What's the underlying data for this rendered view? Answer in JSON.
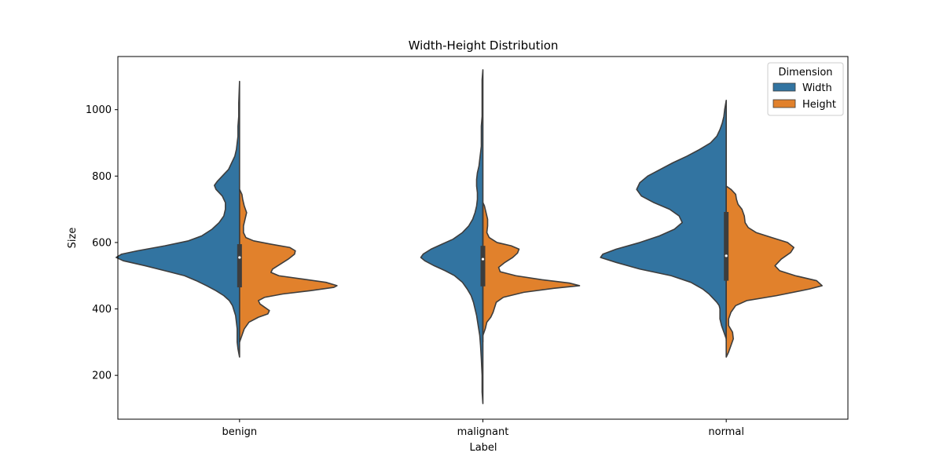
{
  "chart_data": {
    "type": "violin",
    "title": "Width-Height Distribution",
    "xlabel": "Label",
    "ylabel": "Size",
    "categories": [
      "benign",
      "malignant",
      "normal"
    ],
    "yticks": [
      200,
      400,
      600,
      800,
      1000
    ],
    "ylim": [
      68,
      1160
    ],
    "split": true,
    "grid": false,
    "legend": {
      "title": "Dimension",
      "placement": "top-right",
      "entries": [
        "Width",
        "Height"
      ]
    },
    "series": [
      {
        "name": "Width",
        "color": "#3274a1",
        "side": "left",
        "violins": [
          {
            "category": "benign",
            "profile": [
              [
                255,
                0
              ],
              [
                280,
                2
              ],
              [
                300,
                3
              ],
              [
                320,
                3
              ],
              [
                340,
                3
              ],
              [
                360,
                4
              ],
              [
                380,
                5
              ],
              [
                395,
                7
              ],
              [
                410,
                9
              ],
              [
                425,
                13
              ],
              [
                440,
                20
              ],
              [
                455,
                30
              ],
              [
                470,
                42
              ],
              [
                485,
                55
              ],
              [
                500,
                70
              ],
              [
                515,
                95
              ],
              [
                530,
                120
              ],
              [
                545,
                148
              ],
              [
                555,
                157
              ],
              [
                565,
                150
              ],
              [
                575,
                130
              ],
              [
                590,
                95
              ],
              [
                605,
                65
              ],
              [
                620,
                48
              ],
              [
                640,
                35
              ],
              [
                660,
                26
              ],
              [
                680,
                20
              ],
              [
                700,
                18
              ],
              [
                720,
                18
              ],
              [
                740,
                22
              ],
              [
                760,
                30
              ],
              [
                772,
                32
              ],
              [
                785,
                28
              ],
              [
                800,
                22
              ],
              [
                820,
                14
              ],
              [
                840,
                10
              ],
              [
                860,
                6
              ],
              [
                880,
                4
              ],
              [
                900,
                3
              ],
              [
                920,
                2
              ],
              [
                950,
                2
              ],
              [
                980,
                1
              ],
              [
                1020,
                1
              ],
              [
                1085,
                0
              ]
            ]
          },
          {
            "category": "malignant",
            "profile": [
              [
                115,
                0
              ],
              [
                150,
                1
              ],
              [
                200,
                1
              ],
              [
                250,
                2
              ],
              [
                290,
                3
              ],
              [
                320,
                4
              ],
              [
                350,
                6
              ],
              [
                380,
                8
              ],
              [
                400,
                10
              ],
              [
                420,
                12
              ],
              [
                440,
                15
              ],
              [
                460,
                20
              ],
              [
                480,
                26
              ],
              [
                500,
                36
              ],
              [
                515,
                48
              ],
              [
                530,
                62
              ],
              [
                545,
                74
              ],
              [
                555,
                79
              ],
              [
                565,
                76
              ],
              [
                580,
                66
              ],
              [
                595,
                52
              ],
              [
                610,
                38
              ],
              [
                630,
                26
              ],
              [
                650,
                18
              ],
              [
                670,
                13
              ],
              [
                690,
                10
              ],
              [
                710,
                8
              ],
              [
                730,
                7
              ],
              [
                750,
                7
              ],
              [
                770,
                8
              ],
              [
                790,
                8
              ],
              [
                810,
                7
              ],
              [
                830,
                5
              ],
              [
                850,
                4
              ],
              [
                870,
                3
              ],
              [
                890,
                2
              ],
              [
                920,
                2
              ],
              [
                950,
                2
              ],
              [
                980,
                1
              ],
              [
                1020,
                1
              ],
              [
                1060,
                1
              ],
              [
                1090,
                1
              ],
              [
                1120,
                0
              ]
            ]
          },
          {
            "category": "normal",
            "profile": [
              [
                310,
                0
              ],
              [
                330,
                3
              ],
              [
                350,
                6
              ],
              [
                370,
                8
              ],
              [
                390,
                8
              ],
              [
                400,
                8
              ],
              [
                410,
                9
              ],
              [
                420,
                12
              ],
              [
                430,
                16
              ],
              [
                445,
                22
              ],
              [
                460,
                30
              ],
              [
                480,
                45
              ],
              [
                500,
                70
              ],
              [
                520,
                110
              ],
              [
                540,
                140
              ],
              [
                555,
                160
              ],
              [
                565,
                157
              ],
              [
                580,
                140
              ],
              [
                600,
                110
              ],
              [
                620,
                85
              ],
              [
                640,
                66
              ],
              [
                660,
                56
              ],
              [
                680,
                60
              ],
              [
                700,
                72
              ],
              [
                720,
                92
              ],
              [
                740,
                108
              ],
              [
                760,
                114
              ],
              [
                780,
                110
              ],
              [
                800,
                100
              ],
              [
                820,
                84
              ],
              [
                840,
                68
              ],
              [
                860,
                50
              ],
              [
                880,
                34
              ],
              [
                900,
                20
              ],
              [
                920,
                12
              ],
              [
                940,
                8
              ],
              [
                960,
                5
              ],
              [
                980,
                3
              ],
              [
                1000,
                2
              ],
              [
                1028,
                0
              ]
            ]
          }
        ]
      },
      {
        "name": "Height",
        "color": "#e1812c",
        "side": "right",
        "violins": [
          {
            "category": "benign",
            "profile": [
              [
                300,
                0
              ],
              [
                320,
                3
              ],
              [
                340,
                6
              ],
              [
                360,
                12
              ],
              [
                375,
                24
              ],
              [
                385,
                36
              ],
              [
                395,
                38
              ],
              [
                405,
                32
              ],
              [
                415,
                26
              ],
              [
                425,
                24
              ],
              [
                435,
                32
              ],
              [
                445,
                55
              ],
              [
                455,
                90
              ],
              [
                465,
                120
              ],
              [
                470,
                124
              ],
              [
                480,
                110
              ],
              [
                490,
                80
              ],
              [
                500,
                50
              ],
              [
                510,
                40
              ],
              [
                520,
                42
              ],
              [
                535,
                52
              ],
              [
                550,
                62
              ],
              [
                565,
                70
              ],
              [
                575,
                71
              ],
              [
                585,
                64
              ],
              [
                595,
                40
              ],
              [
                605,
                18
              ],
              [
                615,
                8
              ],
              [
                630,
                5
              ],
              [
                650,
                5
              ],
              [
                670,
                7
              ],
              [
                690,
                9
              ],
              [
                710,
                6
              ],
              [
                730,
                4
              ],
              [
                745,
                3
              ],
              [
                760,
                0
              ]
            ]
          },
          {
            "category": "malignant",
            "profile": [
              [
                320,
                0
              ],
              [
                340,
                3
              ],
              [
                360,
                5
              ],
              [
                375,
                10
              ],
              [
                390,
                13
              ],
              [
                405,
                15
              ],
              [
                420,
                17
              ],
              [
                435,
                26
              ],
              [
                450,
                52
              ],
              [
                462,
                90
              ],
              [
                470,
                123
              ],
              [
                478,
                110
              ],
              [
                488,
                75
              ],
              [
                500,
                42
              ],
              [
                512,
                22
              ],
              [
                525,
                20
              ],
              [
                540,
                28
              ],
              [
                555,
                38
              ],
              [
                568,
                44
              ],
              [
                580,
                46
              ],
              [
                590,
                36
              ],
              [
                600,
                18
              ],
              [
                615,
                8
              ],
              [
                630,
                5
              ],
              [
                650,
                6
              ],
              [
                670,
                6
              ],
              [
                690,
                4
              ],
              [
                710,
                2
              ],
              [
                720,
                0
              ]
            ]
          },
          {
            "category": "normal",
            "profile": [
              [
                255,
                0
              ],
              [
                270,
                3
              ],
              [
                290,
                6
              ],
              [
                310,
                9
              ],
              [
                330,
                8
              ],
              [
                350,
                3
              ],
              [
                370,
                3
              ],
              [
                390,
                6
              ],
              [
                410,
                12
              ],
              [
                425,
                26
              ],
              [
                440,
                64
              ],
              [
                460,
                106
              ],
              [
                470,
                122
              ],
              [
                485,
                115
              ],
              [
                500,
                88
              ],
              [
                515,
                68
              ],
              [
                530,
                62
              ],
              [
                550,
                70
              ],
              [
                570,
                82
              ],
              [
                585,
                86
              ],
              [
                600,
                78
              ],
              [
                615,
                58
              ],
              [
                630,
                38
              ],
              [
                645,
                28
              ],
              [
                660,
                24
              ],
              [
                680,
                23
              ],
              [
                700,
                20
              ],
              [
                715,
                15
              ],
              [
                730,
                13
              ],
              [
                745,
                12
              ],
              [
                760,
                6
              ],
              [
                770,
                0
              ]
            ]
          }
        ]
      }
    ],
    "boxes": [
      {
        "category": "benign",
        "q1": 465,
        "q3": 595,
        "median": 555,
        "whisker_low": 300,
        "whisker_high": 760
      },
      {
        "category": "malignant",
        "q1": 468,
        "q3": 590,
        "median": 550,
        "whisker_low": 300,
        "whisker_high": 710
      },
      {
        "category": "normal",
        "q1": 485,
        "q3": 692,
        "median": 560,
        "whisker_low": 305,
        "whisker_high": 1000
      }
    ],
    "axis_color": "#000000",
    "outline_color": "#3d3d3d",
    "box_color": "#3d3d3d"
  }
}
